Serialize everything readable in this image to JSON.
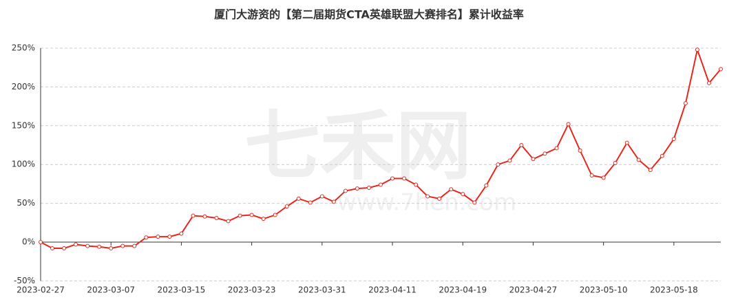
{
  "chart_data": {
    "type": "line",
    "title": "厦门大游资的【第二届期货CTA英雄联盟大赛排名】累计收益率",
    "watermark": [
      "七禾网",
      "www.7hen.com"
    ],
    "categories": [
      "2023-02-27",
      null,
      null,
      null,
      null,
      null,
      "2023-03-07",
      null,
      null,
      null,
      null,
      null,
      "2023-03-15",
      null,
      null,
      null,
      null,
      null,
      "2023-03-23",
      null,
      null,
      null,
      null,
      null,
      "2023-03-31",
      null,
      null,
      null,
      null,
      null,
      "2023-04-11",
      null,
      null,
      null,
      null,
      null,
      "2023-04-19",
      null,
      null,
      null,
      null,
      null,
      "2023-04-27",
      null,
      null,
      null,
      null,
      null,
      "2023-05-10",
      null,
      null,
      null,
      null,
      null,
      "2023-05-18",
      null,
      null,
      null,
      null
    ],
    "series": [
      {
        "color": "#e8261c",
        "values": [
          0,
          -8,
          -8,
          -3,
          -5,
          -6,
          -8,
          -5,
          -5,
          6,
          7,
          7,
          11,
          34,
          33,
          31,
          27,
          34,
          35,
          30,
          35,
          46,
          56,
          51,
          59,
          52,
          66,
          69,
          70,
          74,
          82,
          82,
          74,
          59,
          56,
          68,
          62,
          51,
          73,
          100,
          105,
          125,
          107,
          114,
          121,
          152,
          118,
          86,
          83,
          102,
          128,
          106,
          93,
          111,
          133,
          179,
          248,
          205,
          223
        ]
      }
    ],
    "ylim": [
      -50,
      250
    ],
    "yticks": [
      {
        "value": -50,
        "label": "-50%"
      },
      {
        "value": 0,
        "label": "0%"
      },
      {
        "value": 50,
        "label": "50%"
      },
      {
        "value": 100,
        "label": "100%"
      },
      {
        "value": 150,
        "label": "150%"
      },
      {
        "value": 200,
        "label": "200%"
      },
      {
        "value": 250,
        "label": "250%"
      }
    ],
    "grid": true
  }
}
